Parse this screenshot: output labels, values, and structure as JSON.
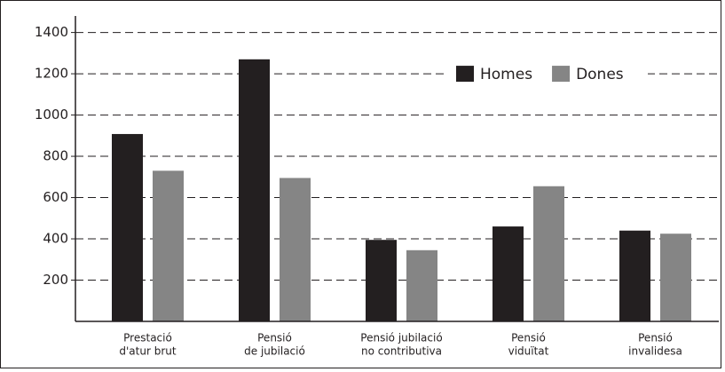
{
  "chart_data": {
    "type": "bar",
    "categories": [
      [
        "Prestació",
        "d'atur brut"
      ],
      [
        "Pensió",
        "de jubilació"
      ],
      [
        "Pensió jubilació",
        "no contributiva"
      ],
      [
        "Pensió",
        "viduïtat"
      ],
      [
        "Pensió",
        "invalidesa"
      ]
    ],
    "series": [
      {
        "name": "Homes",
        "color": "#231f20",
        "values": [
          908,
          1270,
          395,
          460,
          440
        ]
      },
      {
        "name": "Dones",
        "color": "#858585",
        "values": [
          730,
          695,
          345,
          655,
          425
        ]
      }
    ],
    "ylim": [
      0,
      1480
    ],
    "yticks": [
      200,
      400,
      600,
      800,
      1000,
      1200,
      1400
    ],
    "grid": true,
    "legend": "top-right"
  }
}
